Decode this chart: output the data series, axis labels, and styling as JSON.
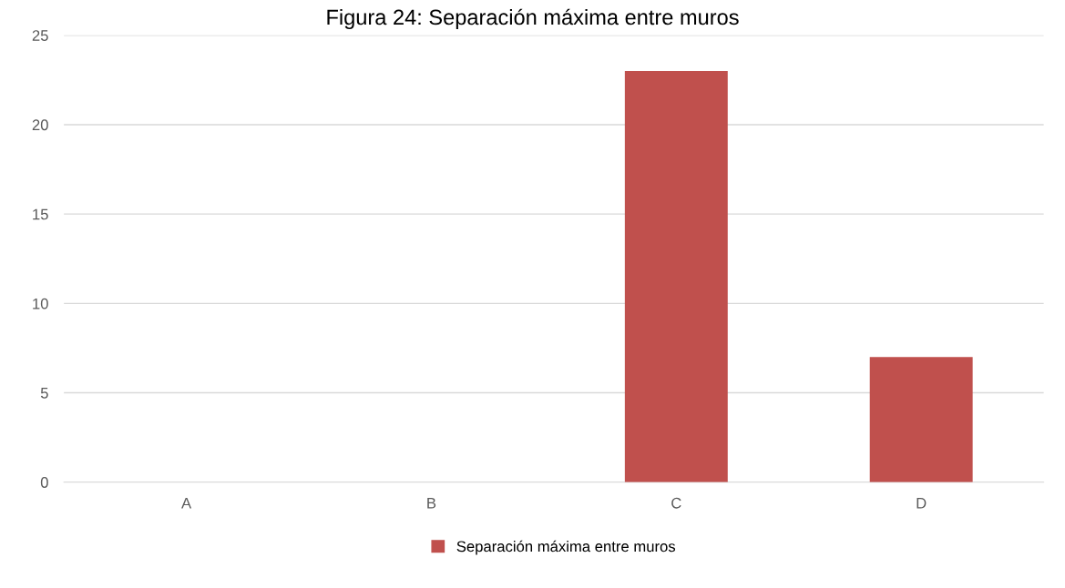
{
  "chart_data": {
    "type": "bar",
    "title": "Figura 24: Separación máxima entre muros",
    "categories": [
      "A",
      "B",
      "C",
      "D"
    ],
    "series": [
      {
        "name": "Separación máxima entre muros",
        "color": "#c0504d",
        "values": [
          0,
          0,
          23,
          7
        ]
      }
    ],
    "ylim": [
      0,
      25
    ],
    "yticks": [
      0,
      5,
      10,
      15,
      20,
      25
    ],
    "grid": "y",
    "legend": "bottom"
  }
}
